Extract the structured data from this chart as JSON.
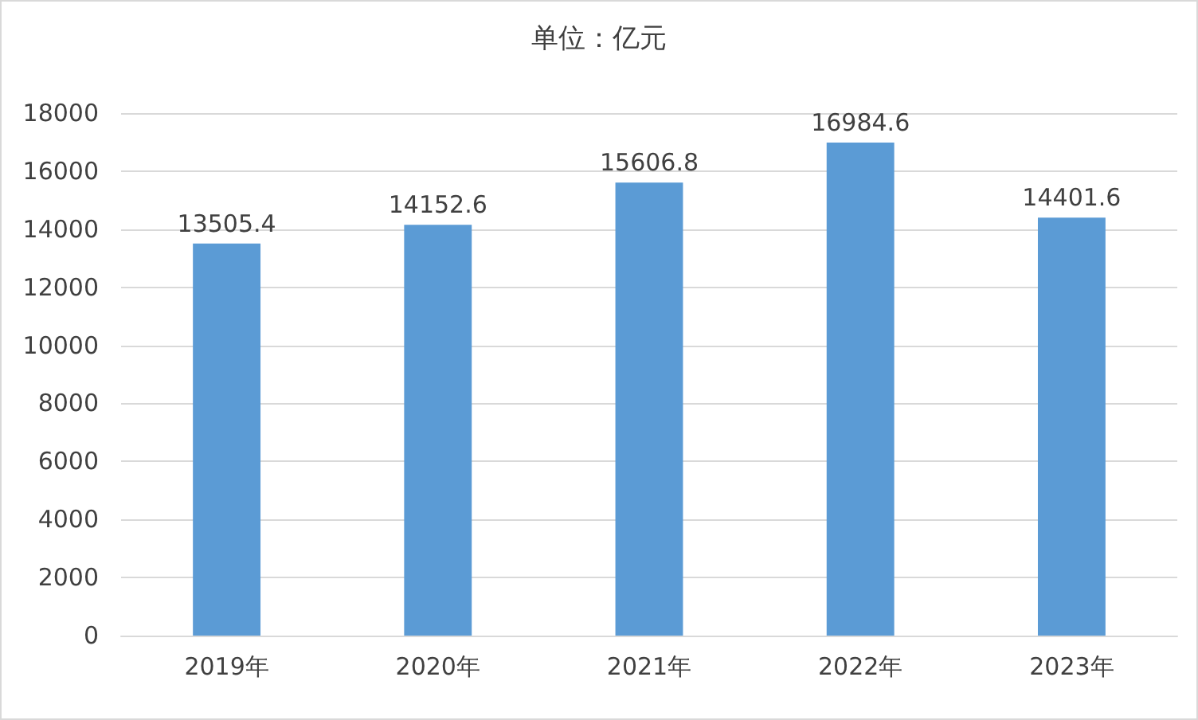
{
  "chart_data": {
    "type": "bar",
    "title": "单位：亿元",
    "categories": [
      "2019年",
      "2020年",
      "2021年",
      "2022年",
      "2023年"
    ],
    "values": [
      13505.4,
      14152.6,
      15606.8,
      16984.6,
      14401.6
    ],
    "color": "#5b9bd5",
    "ylim": [
      0,
      18000
    ],
    "yticks": [
      0,
      2000,
      4000,
      6000,
      8000,
      10000,
      12000,
      14000,
      16000,
      18000
    ],
    "grid": "y",
    "data_labels": true
  }
}
